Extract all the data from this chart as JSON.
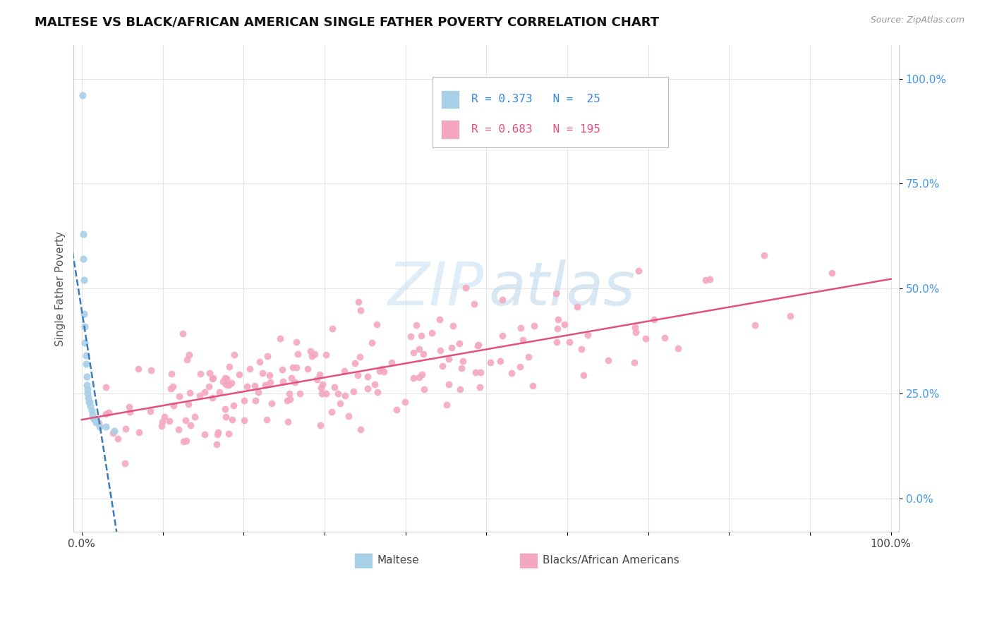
{
  "title": "MALTESE VS BLACK/AFRICAN AMERICAN SINGLE FATHER POVERTY CORRELATION CHART",
  "source": "Source: ZipAtlas.com",
  "ylabel": "Single Father Poverty",
  "blue_color": "#a8cfe8",
  "pink_color": "#f4a8c0",
  "blue_line_color": "#3a7abf",
  "pink_line_color": "#e05080",
  "background_color": "#ffffff",
  "grid_color": "#e5e5e5",
  "legend_label_blue": "Maltese",
  "legend_label_pink": "Blacks/African Americans",
  "ytick_labels": [
    "0.0%",
    "25.0%",
    "50.0%",
    "75.0%",
    "100.0%"
  ],
  "ytick_values": [
    0.0,
    0.25,
    0.5,
    0.75,
    1.0
  ],
  "xmin": -0.01,
  "xmax": 1.01,
  "ymin": -0.08,
  "ymax": 1.08,
  "n_blue": 25,
  "n_pink": 195
}
